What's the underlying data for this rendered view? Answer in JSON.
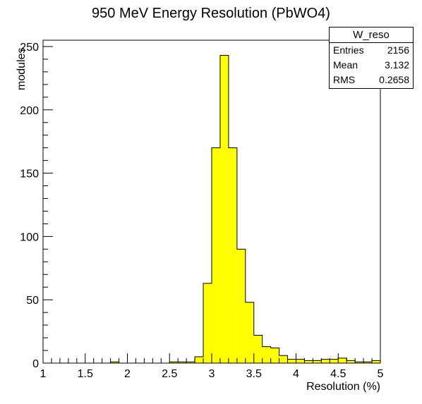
{
  "chart_data": {
    "type": "bar",
    "title": "950 MeV Energy Resolution (PbWO4)",
    "xlabel": "Resolution (%)",
    "ylabel": "modules",
    "xlim": [
      1,
      5
    ],
    "ylim": [
      0,
      255
    ],
    "bin_width": 0.1,
    "bin_start": 1.0,
    "values": [
      0,
      0,
      0,
      0,
      0,
      0,
      0,
      0,
      1,
      0,
      0,
      0,
      0,
      0,
      0,
      1,
      1,
      1,
      5,
      63,
      170,
      243,
      170,
      90,
      48,
      22,
      13,
      12,
      6,
      3,
      3,
      2,
      2,
      3,
      3,
      4,
      2,
      1,
      1,
      2
    ],
    "x_ticks": [
      "1",
      "1.5",
      "2",
      "2.5",
      "3",
      "3.5",
      "4",
      "4.5",
      "5"
    ],
    "y_ticks": [
      "0",
      "50",
      "100",
      "150",
      "200",
      "250"
    ],
    "bar_color": "#ffff00",
    "legend": {
      "name": "W_reso",
      "rows": [
        {
          "label": "Entries",
          "value": "2156"
        },
        {
          "label": "Mean",
          "value": "3.132"
        },
        {
          "label": "RMS",
          "value": "0.2658"
        }
      ]
    }
  }
}
